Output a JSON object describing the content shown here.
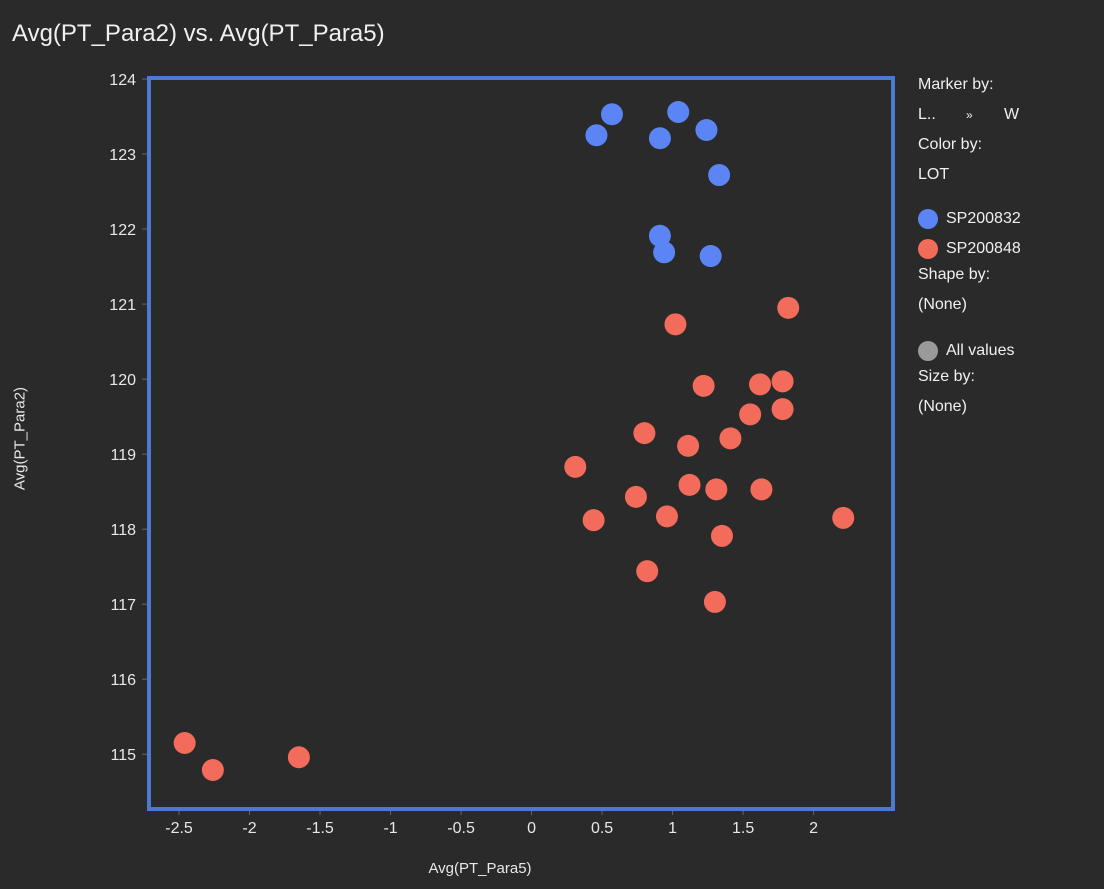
{
  "chart_data": {
    "type": "scatter",
    "title": "Avg(PT_Para2) vs. Avg(PT_Para5)",
    "xlabel": "Avg(PT_Para5)",
    "ylabel": "Avg(PT_Para2)",
    "xlim": [
      -2.72,
      2.57
    ],
    "ylim": [
      114.27,
      124
    ],
    "xticks": [
      -2.5,
      -2,
      -1.5,
      -1,
      -0.5,
      0,
      0.5,
      1,
      1.5,
      2
    ],
    "xtick_labels": [
      "-2.5",
      "-2",
      "-1.5",
      "-1",
      "-0.5",
      "0",
      "0.5",
      "1",
      "1.5",
      "2"
    ],
    "yticks": [
      115,
      116,
      117,
      118,
      119,
      120,
      121,
      122,
      123,
      124
    ],
    "ytick_labels": [
      "115",
      "116",
      "117",
      "118",
      "119",
      "120",
      "121",
      "122",
      "123",
      "124"
    ],
    "grid": false,
    "legend_placement": "right",
    "series": [
      {
        "name": "SP200832",
        "color": "#5b85f5",
        "points": [
          [
            0.57,
            123.53
          ],
          [
            1.04,
            123.56
          ],
          [
            0.46,
            123.25
          ],
          [
            0.91,
            123.21
          ],
          [
            1.24,
            123.32
          ],
          [
            1.33,
            122.72
          ],
          [
            0.91,
            121.91
          ],
          [
            0.94,
            121.69
          ],
          [
            1.27,
            121.64
          ]
        ]
      },
      {
        "name": "SP200848",
        "color": "#f26b5b",
        "points": [
          [
            1.82,
            120.95
          ],
          [
            1.02,
            120.73
          ],
          [
            1.22,
            119.91
          ],
          [
            1.62,
            119.93
          ],
          [
            1.78,
            119.97
          ],
          [
            1.55,
            119.53
          ],
          [
            1.78,
            119.6
          ],
          [
            0.8,
            119.28
          ],
          [
            1.11,
            119.11
          ],
          [
            1.41,
            119.21
          ],
          [
            0.31,
            118.83
          ],
          [
            0.74,
            118.43
          ],
          [
            1.12,
            118.59
          ],
          [
            1.31,
            118.53
          ],
          [
            1.63,
            118.53
          ],
          [
            0.44,
            118.12
          ],
          [
            0.96,
            118.17
          ],
          [
            2.21,
            118.15
          ],
          [
            1.35,
            117.91
          ],
          [
            0.82,
            117.44
          ],
          [
            1.3,
            117.03
          ],
          [
            -2.46,
            115.15
          ],
          [
            -2.26,
            114.79
          ],
          [
            -1.65,
            114.96
          ]
        ]
      }
    ]
  },
  "legend": {
    "marker_by_label": "Marker by:",
    "marker_left": "L..",
    "marker_sep": "»",
    "marker_right": "W",
    "color_by_label": "Color by:",
    "color_by_value": "LOT",
    "items": [
      {
        "label": "SP200832",
        "color": "#5b85f5"
      },
      {
        "label": "SP200848",
        "color": "#f26b5b"
      }
    ],
    "shape_by_label": "Shape by:",
    "shape_by_value": "(None)",
    "shape_item": "All values",
    "shape_color": "#9a9a9a",
    "size_by_label": "Size by:",
    "size_by_value": "(None)"
  },
  "colors": {
    "border": "#4a7bd0"
  }
}
